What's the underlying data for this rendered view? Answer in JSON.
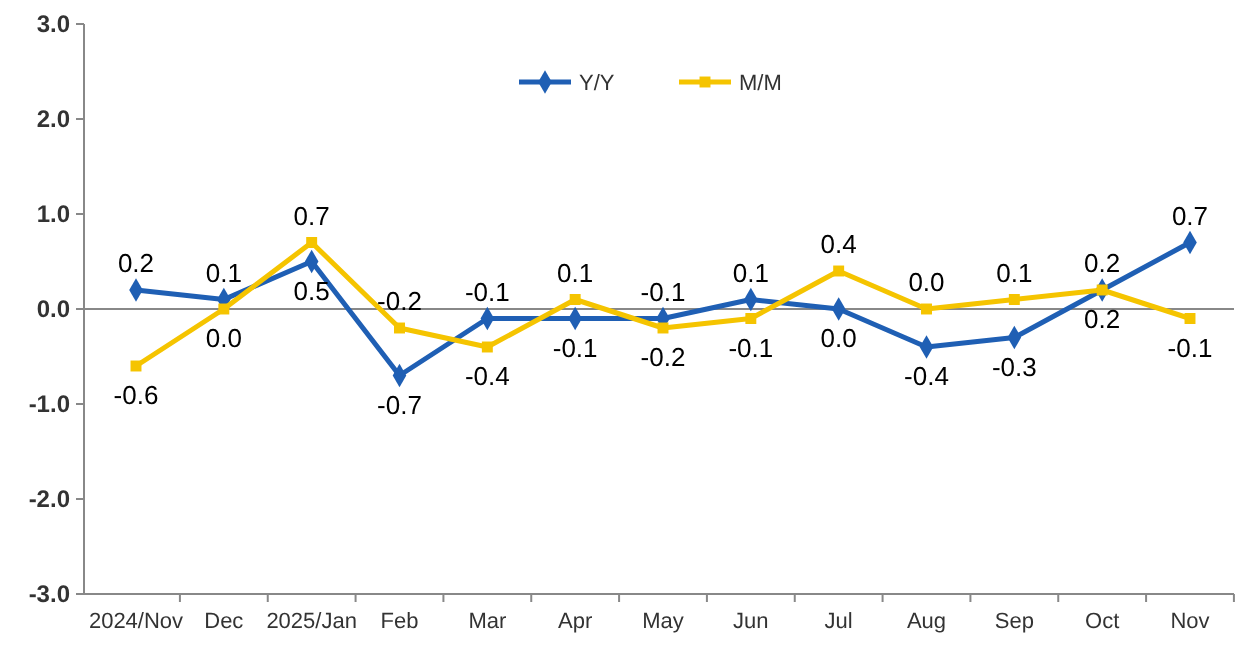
{
  "chart_data": {
    "type": "line",
    "categories": [
      "2024/Nov",
      "Dec",
      "2025/Jan",
      "Feb",
      "Mar",
      "Apr",
      "May",
      "Jun",
      "Jul",
      "Aug",
      "Sep",
      "Oct",
      "Nov"
    ],
    "series": [
      {
        "name": "Y/Y",
        "color": "#1f5fb4",
        "marker": "diamond",
        "values": [
          0.2,
          0.1,
          0.5,
          -0.7,
          -0.1,
          -0.1,
          -0.1,
          0.1,
          0.0,
          -0.4,
          -0.3,
          0.2,
          0.7
        ],
        "value_labels": [
          "0.2",
          "0.1",
          "0.5",
          "-0.7",
          "-0.1",
          "-0.1",
          "-0.1",
          "0.1",
          "0.0",
          "-0.4",
          "-0.3",
          "0.2",
          "0.7"
        ]
      },
      {
        "name": "M/M",
        "color": "#f5c400",
        "marker": "square",
        "values": [
          -0.6,
          0.0,
          0.7,
          -0.2,
          -0.4,
          0.1,
          -0.2,
          -0.1,
          0.4,
          0.0,
          0.1,
          0.2,
          -0.1
        ],
        "value_labels": [
          "-0.6",
          "0.0",
          "0.7",
          "-0.2",
          "-0.4",
          "0.1",
          "-0.2",
          "-0.1",
          "0.4",
          "0.0",
          "0.1",
          "0.2",
          "-0.1"
        ]
      }
    ],
    "ylim": [
      -3,
      3
    ],
    "yticks": [
      {
        "value": 3,
        "label": "3.0"
      },
      {
        "value": 2,
        "label": "2.0"
      },
      {
        "value": 1,
        "label": "1.0"
      },
      {
        "value": 0,
        "label": "0.0"
      },
      {
        "value": -1,
        "label": "-1.0"
      },
      {
        "value": -2,
        "label": "-2.0"
      },
      {
        "value": -3,
        "label": "-3.0"
      }
    ],
    "legend": "top"
  }
}
